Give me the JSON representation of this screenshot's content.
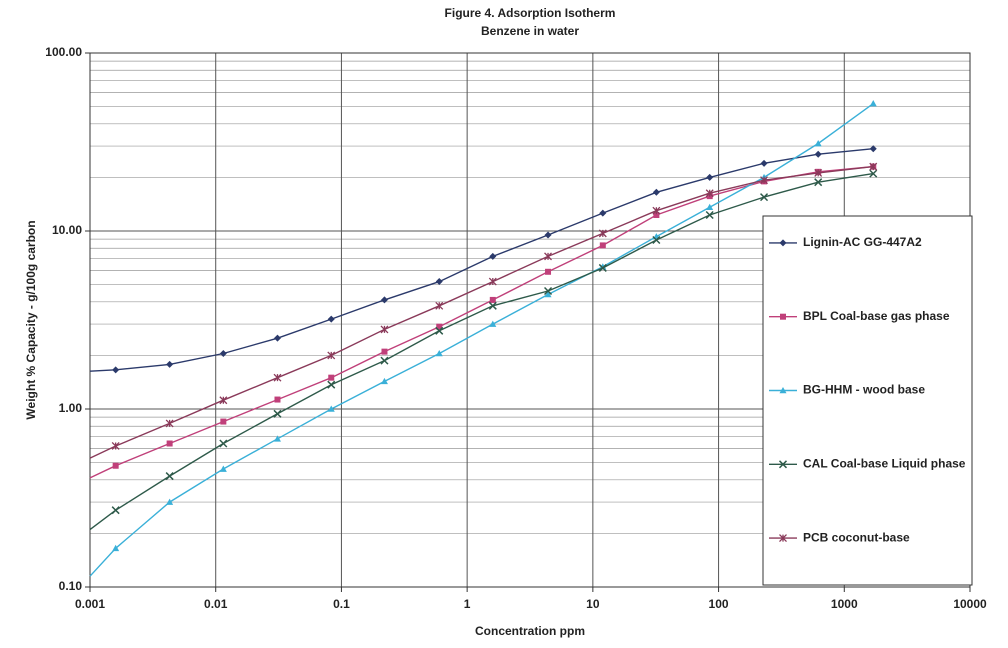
{
  "chart_data": {
    "type": "line",
    "title": "Figure 4. Adsorption Isotherm",
    "subtitle": "Benzene in water",
    "x_label": "Concentration ppm",
    "y_label": "Weight % Capacity - g/100g carbon",
    "x_scale": "log",
    "y_scale": "log",
    "grid": true,
    "minor_grid_y": true,
    "legend": "right",
    "xlim": [
      0.001,
      10000
    ],
    "ylim": [
      0.1,
      100
    ],
    "xticks": [
      0.001,
      0.01,
      0.1,
      1,
      10,
      100,
      1000,
      10000
    ],
    "yticks": [
      {
        "value": 0.1,
        "label": "0.10"
      },
      {
        "value": 1,
        "label": "1.00"
      },
      {
        "value": 10,
        "label": "10.00"
      },
      {
        "value": 100,
        "label": "100.00"
      }
    ],
    "x": [
      0.001,
      0.0016,
      0.0043,
      0.0115,
      0.031,
      0.083,
      0.22,
      0.6,
      1.6,
      4.4,
      12,
      32,
      85,
      230,
      620,
      1700
    ],
    "series": [
      {
        "name": "Lignin-AC GG-447A2",
        "color": "#2b3a6b",
        "marker": "diamond",
        "values": [
          1.63,
          1.66,
          1.78,
          2.05,
          2.5,
          3.2,
          4.1,
          5.2,
          7.2,
          9.5,
          12.6,
          16.5,
          20,
          24,
          27,
          29
        ]
      },
      {
        "name": "BPL Coal-base gas phase",
        "color": "#c0407a",
        "marker": "square",
        "values": [
          0.41,
          0.48,
          0.64,
          0.85,
          1.13,
          1.5,
          2.1,
          2.9,
          4.1,
          5.9,
          8.3,
          12.3,
          15.7,
          19,
          21.5,
          23
        ]
      },
      {
        "name": "BG-HHM - wood base",
        "color": "#3ab0d8",
        "marker": "triangle",
        "values": [
          0.115,
          0.165,
          0.3,
          0.46,
          0.68,
          1.0,
          1.43,
          2.05,
          3.0,
          4.4,
          6.3,
          9.3,
          13.6,
          20,
          31,
          52
        ]
      },
      {
        "name": "CAL Coal-base Liquid phase",
        "color": "#2e5a4a",
        "marker": "x",
        "values": [
          0.21,
          0.27,
          0.42,
          0.64,
          0.94,
          1.37,
          1.87,
          2.75,
          3.8,
          4.6,
          6.2,
          8.9,
          12.3,
          15.5,
          18.8,
          21
        ]
      },
      {
        "name": "PCB coconut-base",
        "color": "#8a3a5a",
        "marker": "star",
        "values": [
          0.53,
          0.62,
          0.83,
          1.12,
          1.5,
          2.0,
          2.8,
          3.8,
          5.2,
          7.2,
          9.7,
          13,
          16.3,
          19.3,
          21.2,
          23
        ]
      }
    ]
  }
}
